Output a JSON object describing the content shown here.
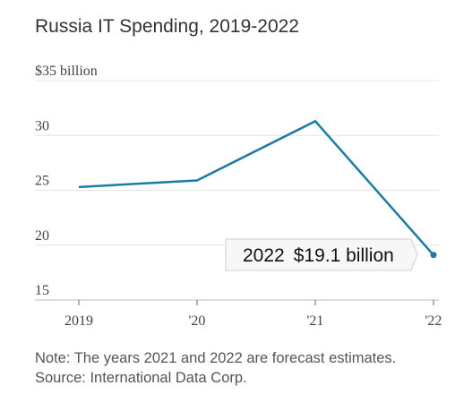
{
  "title": "Russia IT Spending, 2019-2022",
  "chart_data": {
    "type": "line",
    "x": [
      "2019",
      "'20",
      "'21",
      "'22"
    ],
    "series": [
      {
        "values": [
          25.3,
          25.9,
          31.3,
          19.1
        ]
      }
    ],
    "ylim": [
      15,
      35
    ],
    "y_ticks": [
      {
        "value": 35,
        "label": "$35 billion"
      },
      {
        "value": 30,
        "label": "30"
      },
      {
        "value": 25,
        "label": "25"
      },
      {
        "value": 20,
        "label": "20"
      },
      {
        "value": 15,
        "label": "15"
      }
    ],
    "grid": true,
    "annotation": {
      "year": "2022",
      "value_text": "$19.1 billion"
    },
    "line_color": "#1a7ba6"
  },
  "notes": {
    "note": "Note: The years 2021 and 2022 are forecast estimates.",
    "source": "Source: International Data Corp."
  }
}
